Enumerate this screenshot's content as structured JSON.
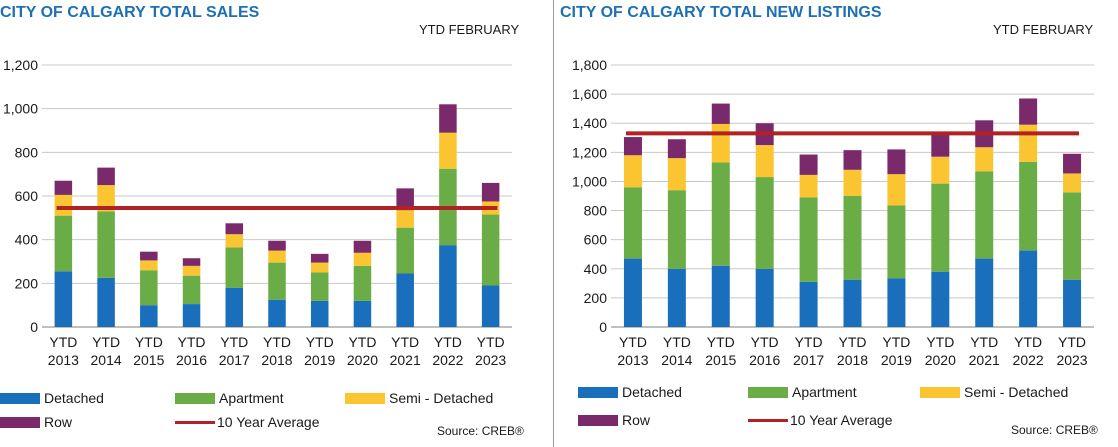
{
  "colors": {
    "detached": "#1a6fbd",
    "apartment": "#6aac45",
    "semi_detached": "#fbc531",
    "row": "#7a2a6a",
    "average": "#b22222",
    "title": "#1f6fb4"
  },
  "charts": [
    {
      "title": "CITY OF CALGARY TOTAL SALES",
      "period": "YTD  FEBRUARY",
      "source": "Source: CREB®",
      "legend": {
        "detached": "Detached",
        "apartment": "Apartment",
        "semi_detached": "Semi - Detached",
        "row": "Row",
        "average": "10 Year Average"
      }
    },
    {
      "title": "CITY OF CALGARY TOTAL NEW LISTINGS",
      "period": "YTD  FEBRUARY",
      "source": "Source: CREB®",
      "legend": {
        "detached": "Detached",
        "apartment": "Apartment",
        "semi_detached": "Semi - Detached",
        "row": "Row",
        "average": "10 Year Average"
      }
    }
  ],
  "chart_data": [
    {
      "type": "bar",
      "stacked": true,
      "title": "CITY OF CALGARY TOTAL SALES",
      "categories": [
        "YTD 2013",
        "YTD 2014",
        "YTD 2015",
        "YTD 2016",
        "YTD 2017",
        "YTD 2018",
        "YTD 2019",
        "YTD 2020",
        "YTD 2021",
        "YTD 2022",
        "YTD 2023"
      ],
      "ylim": [
        0,
        1200
      ],
      "yticks": [
        "0",
        "200",
        "400",
        "600",
        "800",
        "1,000",
        "1,200"
      ],
      "series": [
        {
          "name": "Detached",
          "values": [
            255,
            225,
            100,
            105,
            180,
            125,
            120,
            120,
            245,
            375,
            190
          ]
        },
        {
          "name": "Apartment",
          "values": [
            255,
            305,
            160,
            130,
            185,
            170,
            130,
            160,
            210,
            350,
            325
          ]
        },
        {
          "name": "Semi - Detached",
          "values": [
            95,
            120,
            45,
            45,
            60,
            55,
            45,
            60,
            80,
            165,
            60
          ]
        },
        {
          "name": "Row",
          "values": [
            65,
            80,
            40,
            35,
            50,
            45,
            40,
            55,
            100,
            130,
            85
          ]
        }
      ],
      "average": {
        "name": "10 Year Average",
        "value": 545
      },
      "grid": true,
      "legend": "bottom"
    },
    {
      "type": "bar",
      "stacked": true,
      "title": "CITY OF CALGARY TOTAL NEW LISTINGS",
      "categories": [
        "YTD 2013",
        "YTD 2014",
        "YTD 2015",
        "YTD 2016",
        "YTD 2017",
        "YTD 2018",
        "YTD 2019",
        "YTD 2020",
        "YTD 2021",
        "YTD 2022",
        "YTD 2023"
      ],
      "ylim": [
        0,
        1800
      ],
      "yticks": [
        "0",
        "200",
        "400",
        "600",
        "800",
        "1,000",
        "1,200",
        "1,400",
        "1,600",
        "1,800"
      ],
      "series": [
        {
          "name": "Detached",
          "values": [
            470,
            400,
            420,
            400,
            310,
            325,
            335,
            380,
            470,
            525,
            325
          ]
        },
        {
          "name": "Apartment",
          "values": [
            490,
            540,
            710,
            630,
            580,
            575,
            500,
            605,
            600,
            610,
            600
          ]
        },
        {
          "name": "Semi - Detached",
          "values": [
            220,
            220,
            265,
            220,
            155,
            180,
            215,
            185,
            165,
            255,
            130
          ]
        },
        {
          "name": "Row",
          "values": [
            125,
            130,
            140,
            150,
            140,
            135,
            170,
            165,
            185,
            180,
            135
          ]
        }
      ],
      "average": {
        "name": "10 Year Average",
        "value": 1330
      },
      "grid": true,
      "legend": "bottom"
    }
  ]
}
